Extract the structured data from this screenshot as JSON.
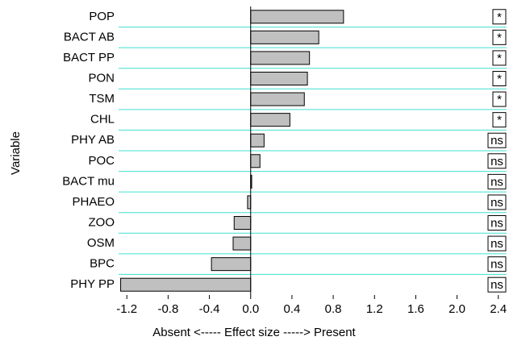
{
  "chart_data": {
    "type": "bar",
    "orientation": "horizontal",
    "x_label": "Absent <----- Effect size -----> Present",
    "y_label": "Variable",
    "categories": [
      "POP",
      "BACT AB",
      "BACT PP",
      "PON",
      "TSM",
      "CHL",
      "PHY AB",
      "POC",
      "BACT mu",
      "PHAEO",
      "ZOO",
      "OSM",
      "BPC",
      "PHY PP"
    ],
    "values": [
      0.9,
      0.66,
      0.57,
      0.55,
      0.52,
      0.38,
      0.13,
      0.09,
      0.01,
      -0.03,
      -0.16,
      -0.17,
      -0.38,
      -1.26
    ],
    "significance": [
      "*",
      "*",
      "*",
      "*",
      "*",
      "*",
      "ns",
      "ns",
      "ns",
      "ns",
      "ns",
      "ns",
      "ns",
      "ns"
    ],
    "color": "#c0c0c0",
    "separator_color": "#40e0d0",
    "xlim": [
      -1.28,
      2.48
    ],
    "xticks": [
      {
        "value": -1.2,
        "label": "-1.2"
      },
      {
        "value": -0.8,
        "label": "-0.8"
      },
      {
        "value": -0.4,
        "label": "-0.4"
      },
      {
        "value": 0,
        "label": "0.0"
      },
      {
        "value": 0.4,
        "label": "0.4"
      },
      {
        "value": 0.8,
        "label": "0.8"
      },
      {
        "value": 1.2,
        "label": "1.2"
      },
      {
        "value": 1.6,
        "label": "1.6"
      },
      {
        "value": 2,
        "label": "2.0"
      },
      {
        "value": 2.4,
        "label": "2.4"
      }
    ]
  }
}
